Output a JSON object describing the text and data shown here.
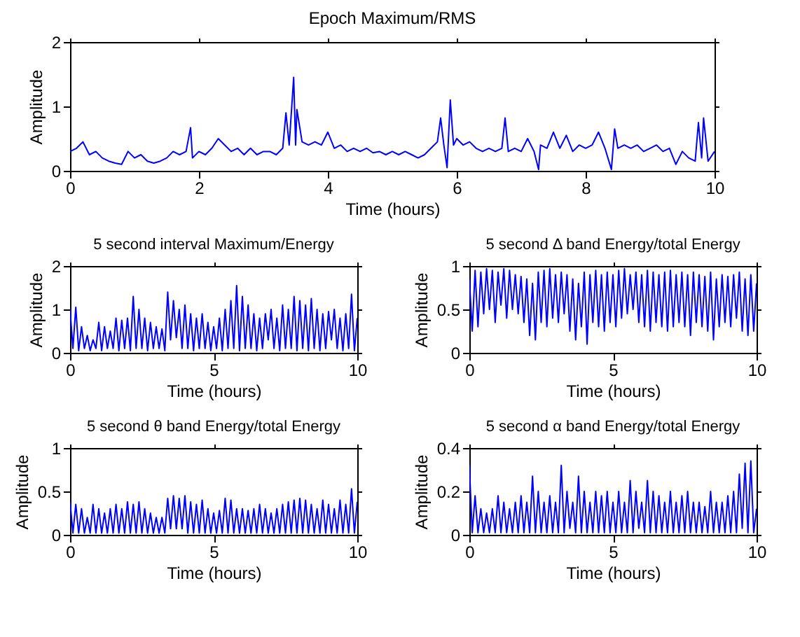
{
  "chart_data": [
    {
      "type": "line",
      "title": "Epoch Maximum/RMS",
      "xlabel": "Time (hours)",
      "ylabel": "Amplitude",
      "xlim": [
        0,
        10
      ],
      "xticks": [
        0,
        2,
        4,
        6,
        8,
        10
      ],
      "ylim": [
        0,
        2
      ],
      "yticks": [
        0,
        1,
        2
      ],
      "x": [
        0,
        0.1,
        0.2,
        0.3,
        0.4,
        0.5,
        0.6,
        0.7,
        0.8,
        0.9,
        1.0,
        1.1,
        1.2,
        1.3,
        1.4,
        1.5,
        1.6,
        1.7,
        1.8,
        1.87,
        1.9,
        2.0,
        2.1,
        2.2,
        2.3,
        2.4,
        2.5,
        2.6,
        2.7,
        2.8,
        2.9,
        3.0,
        3.1,
        3.2,
        3.3,
        3.35,
        3.4,
        3.47,
        3.5,
        3.52,
        3.6,
        3.7,
        3.8,
        3.9,
        4.0,
        4.1,
        4.2,
        4.3,
        4.4,
        4.5,
        4.6,
        4.7,
        4.8,
        4.9,
        5.0,
        5.1,
        5.2,
        5.3,
        5.4,
        5.5,
        5.6,
        5.7,
        5.75,
        5.8,
        5.85,
        5.9,
        5.95,
        6.0,
        6.1,
        6.2,
        6.3,
        6.4,
        6.5,
        6.6,
        6.7,
        6.75,
        6.8,
        6.9,
        7.0,
        7.1,
        7.2,
        7.27,
        7.3,
        7.4,
        7.5,
        7.6,
        7.7,
        7.8,
        7.9,
        8.0,
        8.1,
        8.2,
        8.3,
        8.4,
        8.45,
        8.5,
        8.6,
        8.7,
        8.8,
        8.9,
        9.0,
        9.1,
        9.2,
        9.3,
        9.4,
        9.5,
        9.6,
        9.7,
        9.75,
        9.8,
        9.83,
        9.9,
        10.0
      ],
      "series": [
        {
          "color": "#0000ff",
          "values": [
            0.3,
            0.35,
            0.45,
            0.25,
            0.3,
            0.2,
            0.15,
            0.12,
            0.1,
            0.3,
            0.2,
            0.25,
            0.15,
            0.12,
            0.15,
            0.2,
            0.3,
            0.25,
            0.3,
            0.67,
            0.2,
            0.3,
            0.25,
            0.35,
            0.5,
            0.4,
            0.3,
            0.35,
            0.25,
            0.35,
            0.25,
            0.3,
            0.3,
            0.25,
            0.35,
            0.9,
            0.4,
            1.45,
            0.4,
            0.95,
            0.45,
            0.4,
            0.45,
            0.4,
            0.6,
            0.35,
            0.4,
            0.3,
            0.35,
            0.3,
            0.35,
            0.28,
            0.3,
            0.25,
            0.3,
            0.25,
            0.3,
            0.25,
            0.2,
            0.25,
            0.35,
            0.45,
            0.82,
            0.4,
            0.05,
            1.1,
            0.4,
            0.5,
            0.4,
            0.45,
            0.35,
            0.3,
            0.35,
            0.3,
            0.35,
            0.82,
            0.3,
            0.35,
            0.3,
            0.5,
            0.3,
            0.02,
            0.4,
            0.35,
            0.6,
            0.35,
            0.55,
            0.3,
            0.4,
            0.35,
            0.4,
            0.6,
            0.35,
            0.02,
            0.65,
            0.35,
            0.4,
            0.35,
            0.4,
            0.3,
            0.35,
            0.4,
            0.3,
            0.35,
            0.1,
            0.3,
            0.2,
            0.15,
            0.75,
            0.2,
            0.82,
            0.15,
            0.3
          ]
        }
      ]
    },
    {
      "type": "line",
      "title": "5 second interval Maximum/Energy",
      "xlabel": "Time (hours)",
      "ylabel": "Amplitude",
      "xlim": [
        0,
        10
      ],
      "xticks": [
        0,
        5,
        10
      ],
      "ylim": [
        0,
        2
      ],
      "yticks": [
        0,
        1,
        2
      ],
      "x": [
        0,
        0.1,
        0.2,
        0.3,
        0.4,
        0.5,
        0.6,
        0.7,
        0.8,
        0.9,
        1.0,
        1.1,
        1.2,
        1.3,
        1.4,
        1.5,
        1.6,
        1.7,
        1.8,
        1.9,
        2.0,
        2.1,
        2.2,
        2.3,
        2.4,
        2.5,
        2.6,
        2.7,
        2.8,
        2.9,
        3.0,
        3.1,
        3.2,
        3.3,
        3.4,
        3.5,
        3.6,
        3.7,
        3.8,
        3.9,
        4.0,
        4.1,
        4.2,
        4.3,
        4.4,
        4.5,
        4.6,
        4.7,
        4.8,
        4.9,
        5.0,
        5.1,
        5.2,
        5.3,
        5.4,
        5.5,
        5.6,
        5.7,
        5.8,
        5.9,
        6.0,
        6.1,
        6.2,
        6.3,
        6.4,
        6.5,
        6.6,
        6.7,
        6.8,
        6.9,
        7.0,
        7.1,
        7.2,
        7.3,
        7.4,
        7.5,
        7.6,
        7.7,
        7.8,
        7.9,
        8.0,
        8.1,
        8.2,
        8.3,
        8.4,
        8.5,
        8.6,
        8.7,
        8.8,
        8.9,
        9.0,
        9.1,
        9.2,
        9.3,
        9.4,
        9.5,
        9.6,
        9.7,
        9.8,
        9.9,
        10.0
      ],
      "series": [
        {
          "color": "#0000ff",
          "values": [
            1.0,
            0.1,
            1.05,
            0.05,
            0.6,
            0.1,
            0.4,
            0.05,
            0.3,
            0.1,
            0.7,
            0.05,
            0.6,
            0.1,
            0.5,
            0.1,
            0.8,
            0.05,
            0.75,
            0.1,
            0.8,
            0.05,
            1.3,
            0.1,
            1.0,
            0.1,
            0.8,
            0.05,
            0.7,
            0.1,
            0.6,
            0.1,
            0.55,
            0.05,
            1.4,
            0.3,
            1.2,
            0.35,
            1.0,
            0.1,
            1.1,
            0.1,
            0.9,
            0.05,
            0.8,
            0.1,
            0.9,
            0.1,
            0.7,
            0.05,
            0.6,
            0.1,
            0.8,
            0.05,
            1.0,
            0.1,
            1.2,
            0.1,
            1.55,
            0.05,
            1.3,
            0.1,
            1.1,
            0.1,
            0.9,
            0.05,
            0.8,
            0.1,
            0.9,
            0.3,
            1.0,
            0.1,
            0.8,
            0.05,
            1.1,
            0.1,
            1.0,
            0.1,
            1.3,
            0.05,
            1.2,
            0.1,
            1.1,
            0.05,
            1.25,
            0.1,
            1.0,
            0.05,
            0.9,
            0.1,
            0.95,
            0.3,
            1.0,
            0.1,
            0.8,
            0.05,
            0.9,
            0.1,
            1.35,
            0.05,
            0.8
          ]
        }
      ]
    },
    {
      "type": "line",
      "title": "5 second Δ band Energy/total Energy",
      "xlabel": "Time (hours)",
      "ylabel": "Amplitude",
      "xlim": [
        0,
        10
      ],
      "xticks": [
        0,
        5,
        10
      ],
      "ylim": [
        0,
        1
      ],
      "yticks": [
        0,
        0.5,
        1
      ],
      "x": [
        0,
        0.1,
        0.2,
        0.3,
        0.4,
        0.5,
        0.6,
        0.7,
        0.8,
        0.9,
        1.0,
        1.1,
        1.2,
        1.3,
        1.4,
        1.5,
        1.6,
        1.7,
        1.8,
        1.9,
        2.0,
        2.1,
        2.2,
        2.3,
        2.4,
        2.5,
        2.6,
        2.7,
        2.8,
        2.9,
        3.0,
        3.1,
        3.2,
        3.3,
        3.4,
        3.5,
        3.6,
        3.7,
        3.8,
        3.9,
        4.0,
        4.1,
        4.2,
        4.3,
        4.4,
        4.5,
        4.6,
        4.7,
        4.8,
        4.9,
        5.0,
        5.1,
        5.2,
        5.3,
        5.4,
        5.5,
        5.6,
        5.7,
        5.8,
        5.9,
        6.0,
        6.1,
        6.2,
        6.3,
        6.4,
        6.5,
        6.6,
        6.7,
        6.8,
        6.9,
        7.0,
        7.1,
        7.2,
        7.3,
        7.4,
        7.5,
        7.6,
        7.7,
        7.8,
        7.9,
        8.0,
        8.1,
        8.2,
        8.3,
        8.4,
        8.5,
        8.6,
        8.7,
        8.8,
        8.9,
        9.0,
        9.1,
        9.2,
        9.3,
        9.4,
        9.5,
        9.6,
        9.7,
        9.8,
        9.9,
        10.0
      ],
      "series": [
        {
          "color": "#0000ff",
          "values": [
            0.85,
            0.25,
            0.95,
            0.3,
            0.93,
            0.45,
            0.97,
            0.5,
            0.95,
            0.35,
            0.93,
            0.55,
            0.97,
            0.4,
            0.95,
            0.5,
            0.9,
            0.45,
            0.88,
            0.35,
            0.85,
            0.2,
            0.8,
            0.15,
            0.93,
            0.35,
            0.95,
            0.3,
            0.97,
            0.4,
            0.9,
            0.35,
            0.93,
            0.45,
            0.9,
            0.25,
            0.85,
            0.15,
            0.8,
            0.3,
            0.93,
            0.1,
            0.9,
            0.35,
            0.95,
            0.3,
            0.9,
            0.25,
            0.93,
            0.35,
            0.9,
            0.3,
            0.95,
            0.4,
            0.97,
            0.45,
            0.9,
            0.5,
            0.93,
            0.35,
            0.9,
            0.3,
            0.95,
            0.25,
            0.93,
            0.35,
            0.9,
            0.3,
            0.93,
            0.25,
            0.95,
            0.3,
            0.9,
            0.35,
            0.93,
            0.3,
            0.9,
            0.2,
            0.93,
            0.35,
            0.9,
            0.3,
            0.88,
            0.25,
            0.93,
            0.15,
            0.85,
            0.3,
            0.9,
            0.35,
            0.88,
            0.3,
            0.9,
            0.4,
            0.93,
            0.25,
            0.85,
            0.2,
            0.9,
            0.25,
            0.8
          ]
        }
      ]
    },
    {
      "type": "line",
      "title": "5 second θ band Energy/total Energy",
      "xlabel": "Time (hours)",
      "ylabel": "Amplitude",
      "xlim": [
        0,
        10
      ],
      "xticks": [
        0,
        5,
        10
      ],
      "ylim": [
        0,
        1
      ],
      "yticks": [
        0,
        0.5,
        1
      ],
      "x": [
        0,
        0.1,
        0.2,
        0.3,
        0.4,
        0.5,
        0.6,
        0.7,
        0.8,
        0.9,
        1.0,
        1.1,
        1.2,
        1.3,
        1.4,
        1.5,
        1.6,
        1.7,
        1.8,
        1.9,
        2.0,
        2.1,
        2.2,
        2.3,
        2.4,
        2.5,
        2.6,
        2.7,
        2.8,
        2.9,
        3.0,
        3.1,
        3.2,
        3.3,
        3.4,
        3.5,
        3.6,
        3.7,
        3.8,
        3.9,
        4.0,
        4.1,
        4.2,
        4.3,
        4.4,
        4.5,
        4.6,
        4.7,
        4.8,
        4.9,
        5.0,
        5.1,
        5.2,
        5.3,
        5.4,
        5.5,
        5.6,
        5.7,
        5.8,
        5.9,
        6.0,
        6.1,
        6.2,
        6.3,
        6.4,
        6.5,
        6.6,
        6.7,
        6.8,
        6.9,
        7.0,
        7.1,
        7.2,
        7.3,
        7.4,
        7.5,
        7.6,
        7.7,
        7.8,
        7.9,
        8.0,
        8.1,
        8.2,
        8.3,
        8.4,
        8.5,
        8.6,
        8.7,
        8.8,
        8.9,
        9.0,
        9.1,
        9.2,
        9.3,
        9.4,
        9.5,
        9.6,
        9.7,
        9.8,
        9.9,
        10.0
      ],
      "series": [
        {
          "color": "#0000ff",
          "values": [
            0.38,
            0.02,
            0.35,
            0.02,
            0.3,
            0.02,
            0.2,
            0.02,
            0.35,
            0.02,
            0.3,
            0.02,
            0.25,
            0.02,
            0.3,
            0.02,
            0.35,
            0.02,
            0.3,
            0.02,
            0.38,
            0.02,
            0.35,
            0.02,
            0.38,
            0.02,
            0.3,
            0.02,
            0.25,
            0.02,
            0.2,
            0.02,
            0.2,
            0.02,
            0.42,
            0.07,
            0.45,
            0.07,
            0.42,
            0.07,
            0.45,
            0.02,
            0.38,
            0.02,
            0.35,
            0.02,
            0.4,
            0.02,
            0.3,
            0.02,
            0.25,
            0.02,
            0.28,
            0.02,
            0.42,
            0.02,
            0.4,
            0.02,
            0.3,
            0.02,
            0.3,
            0.02,
            0.28,
            0.02,
            0.3,
            0.02,
            0.35,
            0.02,
            0.3,
            0.02,
            0.25,
            0.02,
            0.3,
            0.02,
            0.35,
            0.02,
            0.38,
            0.02,
            0.4,
            0.02,
            0.42,
            0.02,
            0.4,
            0.02,
            0.35,
            0.02,
            0.3,
            0.02,
            0.4,
            0.02,
            0.35,
            0.02,
            0.3,
            0.02,
            0.4,
            0.02,
            0.35,
            0.02,
            0.53,
            0.02,
            0.38
          ]
        }
      ]
    },
    {
      "type": "line",
      "title": "5 second α band Energy/total Energy",
      "xlabel": "Time (hours)",
      "ylabel": "Amplitude",
      "xlim": [
        0,
        10
      ],
      "xticks": [
        0,
        5,
        10
      ],
      "ylim": [
        0,
        0.4
      ],
      "yticks": [
        0,
        0.2,
        0.4
      ],
      "x": [
        0,
        0.1,
        0.2,
        0.3,
        0.4,
        0.5,
        0.6,
        0.7,
        0.8,
        0.9,
        1.0,
        1.1,
        1.2,
        1.3,
        1.4,
        1.5,
        1.6,
        1.7,
        1.8,
        1.9,
        2.0,
        2.1,
        2.2,
        2.3,
        2.4,
        2.5,
        2.6,
        2.7,
        2.8,
        2.9,
        3.0,
        3.1,
        3.2,
        3.3,
        3.4,
        3.5,
        3.6,
        3.7,
        3.8,
        3.9,
        4.0,
        4.1,
        4.2,
        4.3,
        4.4,
        4.5,
        4.6,
        4.7,
        4.8,
        4.9,
        5.0,
        5.1,
        5.2,
        5.3,
        5.4,
        5.5,
        5.6,
        5.7,
        5.8,
        5.9,
        6.0,
        6.1,
        6.2,
        6.3,
        6.4,
        6.5,
        6.6,
        6.7,
        6.8,
        6.9,
        7.0,
        7.1,
        7.2,
        7.3,
        7.4,
        7.5,
        7.6,
        7.7,
        7.8,
        7.9,
        8.0,
        8.1,
        8.2,
        8.3,
        8.4,
        8.5,
        8.6,
        8.7,
        8.8,
        8.9,
        9.0,
        9.1,
        9.2,
        9.3,
        9.4,
        9.5,
        9.6,
        9.7,
        9.8,
        9.9,
        10.0
      ],
      "series": [
        {
          "color": "#0000ff",
          "values": [
            0.32,
            0.01,
            0.18,
            0.01,
            0.12,
            0.01,
            0.1,
            0.01,
            0.12,
            0.01,
            0.18,
            0.01,
            0.15,
            0.01,
            0.12,
            0.01,
            0.15,
            0.01,
            0.18,
            0.01,
            0.15,
            0.01,
            0.27,
            0.01,
            0.2,
            0.01,
            0.15,
            0.01,
            0.18,
            0.01,
            0.15,
            0.01,
            0.32,
            0.01,
            0.2,
            0.03,
            0.15,
            0.01,
            0.27,
            0.01,
            0.2,
            0.01,
            0.15,
            0.01,
            0.2,
            0.01,
            0.18,
            0.01,
            0.2,
            0.01,
            0.15,
            0.01,
            0.2,
            0.01,
            0.15,
            0.01,
            0.25,
            0.01,
            0.2,
            0.03,
            0.15,
            0.01,
            0.25,
            0.01,
            0.2,
            0.01,
            0.18,
            0.01,
            0.15,
            0.01,
            0.2,
            0.01,
            0.15,
            0.01,
            0.18,
            0.01,
            0.2,
            0.01,
            0.15,
            0.01,
            0.15,
            0.01,
            0.13,
            0.01,
            0.2,
            0.01,
            0.15,
            0.01,
            0.15,
            0.01,
            0.18,
            0.01,
            0.2,
            0.01,
            0.28,
            0.03,
            0.33,
            0.01,
            0.34,
            0.01,
            0.12
          ]
        }
      ]
    }
  ]
}
